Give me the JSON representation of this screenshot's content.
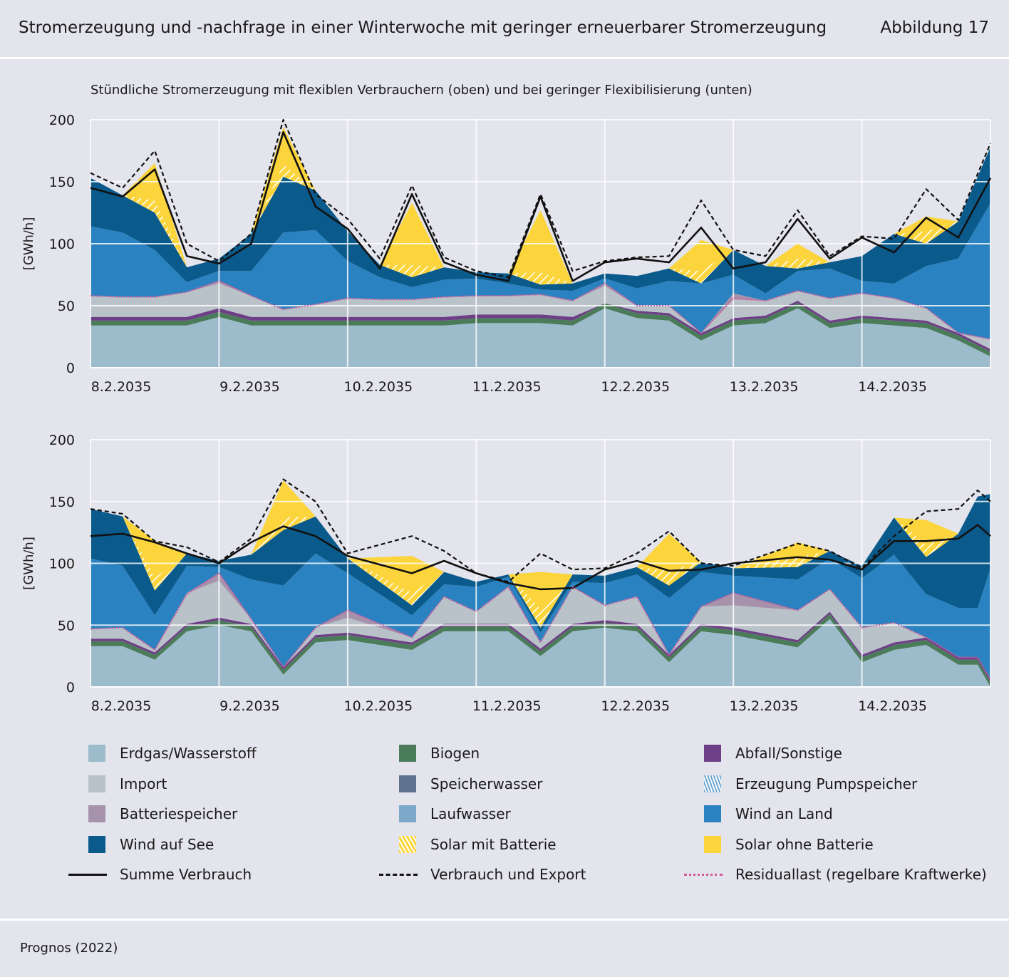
{
  "header": {
    "title": "Stromerzeugung und -nachfrage in einer Winterwoche mit geringer erneuerbarer Stromerzeugung",
    "figure_number": "Abbildung 17"
  },
  "subtitle": "Stündliche Stromerzeugung mit flexiblen Verbrauchern (oben) und bei geringer Flexibilisierung (unten)",
  "source": "Prognos (2022)",
  "colors": {
    "erdgas": "#9dbccb",
    "biogen": "#4a7c59",
    "abfall": "#6e3f86",
    "import": "#b9c2c8",
    "batterie": "#a692ab",
    "speicherwasser": "#5f7391",
    "laufwasser": "#7ca8c9",
    "pumpspeicher": "#6aa5d2",
    "wind_land": "#2a82c0",
    "wind_see": "#0b5a8c",
    "solar_mit": "#f7d44c",
    "solar_ohne": "#fcd43b",
    "summe": "#111111",
    "export": "#111111",
    "residual": "#d0599d",
    "plot_bg": "#e3e4ec",
    "grid": "#ffffff"
  },
  "legend": [
    {
      "key": "erdgas",
      "label": "Erdgas/Wasserstoff",
      "type": "swatch",
      "color": "#9dbccb"
    },
    {
      "key": "biogen",
      "label": "Biogen",
      "type": "swatch",
      "color": "#4a7c59"
    },
    {
      "key": "abfall",
      "label": "Abfall/Sonstige",
      "type": "swatch",
      "color": "#6e3f86"
    },
    {
      "key": "import",
      "label": "Import",
      "type": "swatch",
      "color": "#b9c2c8"
    },
    {
      "key": "speicherwasser",
      "label": "Speicherwasser",
      "type": "swatch",
      "color": "#5f7391"
    },
    {
      "key": "pumpspeicher",
      "label": "Erzeugung Pumpspeicher",
      "type": "hatch-blue",
      "color": "#6aa5d2"
    },
    {
      "key": "batterie",
      "label": "Batteriespeicher",
      "type": "swatch",
      "color": "#a692ab"
    },
    {
      "key": "laufwasser",
      "label": "Laufwasser",
      "type": "swatch",
      "color": "#7ca8c9"
    },
    {
      "key": "wind_land",
      "label": "Wind an Land",
      "type": "swatch",
      "color": "#2a82c0"
    },
    {
      "key": "wind_see",
      "label": "Wind auf See",
      "type": "swatch",
      "color": "#0b5a8c"
    },
    {
      "key": "solar_mit",
      "label": "Solar mit Batterie",
      "type": "hatch-yellow",
      "color": "#f7d44c"
    },
    {
      "key": "solar_ohne",
      "label": "Solar ohne Batterie",
      "type": "swatch",
      "color": "#fcd43b"
    },
    {
      "key": "summe",
      "label": "Summe Verbrauch",
      "type": "line-solid",
      "color": "#111111"
    },
    {
      "key": "export",
      "label": "Verbrauch und Export",
      "type": "line-dashed",
      "color": "#111111"
    },
    {
      "key": "residual",
      "label": "Residuallast (regelbare Kraftwerke)",
      "type": "line-dotted",
      "color": "#d0599d"
    }
  ],
  "chart_data": [
    {
      "type": "area",
      "stacked": true,
      "title": "",
      "xlabel": "",
      "ylabel": "[GWh/h]",
      "ylim": [
        0,
        200
      ],
      "yticks": [
        0,
        50,
        100,
        150,
        200
      ],
      "xticks": [
        "8.2.2035",
        "9.2.2035",
        "10.2.2035",
        "11.2.2035",
        "12.2.2035",
        "13.2.2035",
        "14.2.2035"
      ],
      "xlim_days": [
        0,
        7
      ],
      "grid": true,
      "x_days": [
        0,
        0.25,
        0.5,
        0.75,
        1,
        1.25,
        1.5,
        1.75,
        2,
        2.25,
        2.5,
        2.75,
        3,
        3.25,
        3.5,
        3.75,
        4,
        4.25,
        4.5,
        4.75,
        5,
        5.25,
        5.5,
        5.75,
        6,
        6.25,
        6.5,
        6.75,
        7
      ],
      "series": [
        {
          "key": "erdgas",
          "values": [
            34,
            34,
            34,
            34,
            41,
            34,
            34,
            34,
            34,
            34,
            34,
            34,
            36,
            36,
            36,
            34,
            48,
            40,
            38,
            22,
            34,
            36,
            48,
            32,
            36,
            34,
            32,
            22,
            9
          ]
        },
        {
          "key": "biogen",
          "values": [
            4,
            4,
            4,
            4,
            4,
            4,
            4,
            4,
            4,
            4,
            4,
            4,
            4,
            4,
            4,
            4,
            4,
            4,
            4,
            4,
            4,
            4,
            4,
            4,
            4,
            4,
            4,
            4,
            4
          ]
        },
        {
          "key": "abfall",
          "values": [
            3,
            3,
            3,
            3,
            3,
            3,
            3,
            3,
            3,
            3,
            3,
            3,
            3,
            3,
            3,
            3,
            0,
            2,
            2,
            2,
            2,
            2,
            2,
            2,
            2,
            2,
            2,
            2,
            2
          ]
        },
        {
          "key": "import",
          "values": [
            17,
            16,
            16,
            20,
            20,
            17,
            6,
            10,
            15,
            14,
            14,
            16,
            15,
            15,
            16,
            13,
            14,
            4,
            6,
            0,
            15,
            12,
            8,
            18,
            18,
            16,
            10,
            0,
            8
          ]
        },
        {
          "key": "batterie",
          "values": [
            0,
            0,
            0,
            0,
            2,
            0,
            0,
            0,
            0,
            0,
            0,
            0,
            0,
            0,
            0,
            0,
            2,
            0,
            0,
            0,
            5,
            0,
            0,
            0,
            0,
            0,
            0,
            0,
            0
          ]
        },
        {
          "key": "wind_land",
          "values": [
            56,
            52,
            38,
            8,
            8,
            20,
            62,
            60,
            30,
            18,
            10,
            14,
            14,
            10,
            4,
            8,
            4,
            14,
            20,
            40,
            15,
            6,
            16,
            24,
            10,
            12,
            34,
            60,
            110
          ]
        },
        {
          "key": "wind_see",
          "values": [
            39,
            30,
            30,
            12,
            10,
            30,
            45,
            32,
            24,
            10,
            8,
            10,
            5,
            8,
            4,
            6,
            4,
            10,
            10,
            0,
            20,
            22,
            2,
            5,
            20,
            40,
            18,
            30,
            45
          ]
        },
        {
          "key": "solar_mit",
          "values": [
            0,
            0,
            10,
            0,
            0,
            0,
            10,
            0,
            0,
            0,
            10,
            0,
            0,
            0,
            10,
            0,
            0,
            0,
            0,
            10,
            0,
            0,
            8,
            0,
            0,
            0,
            10,
            0,
            0
          ]
        },
        {
          "key": "solar_ohne",
          "values": [
            0,
            0,
            30,
            0,
            0,
            0,
            30,
            0,
            0,
            0,
            50,
            0,
            0,
            0,
            50,
            0,
            0,
            0,
            0,
            25,
            0,
            0,
            12,
            0,
            0,
            0,
            12,
            0,
            0
          ]
        }
      ],
      "lines": [
        {
          "key": "summe",
          "values": [
            145,
            138,
            160,
            90,
            84,
            100,
            190,
            130,
            112,
            80,
            140,
            85,
            75,
            70,
            138,
            70,
            85,
            88,
            85,
            113,
            80,
            85,
            120,
            88,
            105,
            93,
            121,
            105,
            153
          ]
        },
        {
          "key": "export",
          "values": [
            157,
            145,
            175,
            100,
            86,
            108,
            200,
            140,
            120,
            88,
            147,
            89,
            78,
            73,
            140,
            78,
            86,
            89,
            90,
            135,
            95,
            90,
            127,
            90,
            106,
            104,
            144,
            119,
            181
          ]
        },
        {
          "key": "residual",
          "values": [
            58,
            57,
            57,
            61,
            70,
            58,
            47,
            51,
            56,
            55,
            55,
            57,
            58,
            58,
            59,
            54,
            68,
            50,
            50,
            28,
            56,
            54,
            62,
            56,
            60,
            56,
            48,
            28,
            23
          ]
        }
      ]
    },
    {
      "type": "area",
      "stacked": true,
      "title": "",
      "xlabel": "",
      "ylabel": "[GWh/h]",
      "ylim": [
        0,
        200
      ],
      "yticks": [
        0,
        50,
        100,
        150,
        200
      ],
      "xticks": [
        "8.2.2035",
        "9.2.2035",
        "10.2.2035",
        "11.2.2035",
        "12.2.2035",
        "13.2.2035",
        "14.2.2035"
      ],
      "xlim_days": [
        0,
        7
      ],
      "grid": true,
      "x_days": [
        0,
        0.25,
        0.5,
        0.75,
        1,
        1.25,
        1.5,
        1.75,
        2,
        2.25,
        2.5,
        2.75,
        3,
        3.25,
        3.5,
        3.75,
        4,
        4.25,
        4.5,
        4.75,
        5,
        5.25,
        5.5,
        5.75,
        6,
        6.25,
        6.5,
        6.75,
        7
      ],
      "series": [
        {
          "key": "erdgas",
          "values": [
            33,
            33,
            22,
            45,
            50,
            45,
            10,
            36,
            38,
            30,
            45,
            45,
            45,
            25,
            45,
            48,
            45,
            20,
            45,
            42,
            32,
            55,
            20,
            30,
            34,
            18,
            18,
            0
          ]
        },
        {
          "key": "biogen",
          "values": [
            4,
            4,
            4,
            4,
            4,
            4,
            4,
            4,
            4,
            4,
            4,
            4,
            4,
            4,
            4,
            4,
            4,
            4,
            4,
            4,
            4,
            4,
            4,
            4,
            4,
            4,
            4,
            4
          ]
        },
        {
          "key": "abfall",
          "values": [
            2,
            2,
            2,
            2,
            2,
            2,
            2,
            2,
            2,
            2,
            2,
            2,
            2,
            2,
            2,
            2,
            2,
            2,
            2,
            2,
            2,
            2,
            2,
            2,
            2,
            2,
            2,
            2
          ]
        },
        {
          "key": "import",
          "values": [
            8,
            9,
            2,
            25,
            30,
            4,
            0,
            6,
            12,
            4,
            22,
            10,
            30,
            5,
            30,
            12,
            22,
            0,
            14,
            18,
            24,
            18,
            22,
            16,
            0,
            0,
            0,
            0
          ]
        },
        {
          "key": "batterie",
          "values": [
            0,
            0,
            0,
            0,
            6,
            0,
            0,
            0,
            6,
            0,
            0,
            0,
            0,
            0,
            0,
            0,
            0,
            0,
            0,
            10,
            0,
            0,
            0,
            0,
            0,
            0,
            0,
            0
          ]
        },
        {
          "key": "wind_land",
          "values": [
            57,
            50,
            28,
            22,
            5,
            32,
            66,
            60,
            30,
            18,
            10,
            20,
            8,
            8,
            4,
            18,
            18,
            46,
            28,
            14,
            25,
            25,
            40,
            55,
            35,
            40,
            40,
            90
          ]
        },
        {
          "key": "wind_see",
          "values": [
            40,
            40,
            20,
            10,
            5,
            20,
            45,
            30,
            12,
            8,
            10,
            4,
            2,
            4,
            6,
            6,
            6,
            10,
            8,
            6,
            10,
            6,
            10,
            30,
            30,
            60,
            90,
            60
          ]
        },
        {
          "key": "solar_mit",
          "values": [
            0,
            0,
            10,
            0,
            0,
            0,
            10,
            0,
            0,
            10,
            0,
            0,
            0,
            15,
            0,
            0,
            0,
            12,
            0,
            0,
            8,
            0,
            0,
            0,
            10,
            0,
            0,
            0
          ]
        },
        {
          "key": "solar_ohne",
          "values": [
            0,
            0,
            30,
            0,
            0,
            0,
            30,
            0,
            0,
            30,
            0,
            0,
            0,
            30,
            0,
            0,
            0,
            30,
            0,
            0,
            12,
            0,
            0,
            0,
            20,
            0,
            0,
            0
          ]
        }
      ],
      "x_days_override": [
        0,
        0.25,
        0.5,
        0.75,
        1,
        1.25,
        1.5,
        1.75,
        2,
        2.5,
        2.75,
        3,
        3.25,
        3.5,
        3.75,
        4,
        4.25,
        4.5,
        4.75,
        5,
        5.5,
        5.75,
        6,
        6.25,
        6.5,
        6.75,
        6.9,
        7
      ],
      "lines": [
        {
          "key": "summe",
          "values": [
            122,
            124,
            117,
            108,
            100,
            117,
            130,
            122,
            106,
            92,
            102,
            92,
            84,
            79,
            80,
            95,
            102,
            94,
            95,
            100,
            105,
            103,
            95,
            118,
            118,
            120,
            131,
            122
          ]
        },
        {
          "key": "export",
          "values": [
            144,
            140,
            118,
            113,
            101,
            120,
            168,
            150,
            108,
            122,
            110,
            92,
            85,
            108,
            95,
            96,
            108,
            126,
            100,
            98,
            116,
            110,
            96,
            122,
            142,
            144,
            159,
            150
          ]
        },
        {
          "key": "residual",
          "values": [
            47,
            48,
            30,
            75,
            92,
            55,
            16,
            48,
            62,
            40,
            73,
            61,
            81,
            36,
            81,
            66,
            73,
            26,
            65,
            76,
            62,
            79,
            48,
            52,
            40,
            24,
            24,
            6
          ]
        }
      ]
    }
  ]
}
